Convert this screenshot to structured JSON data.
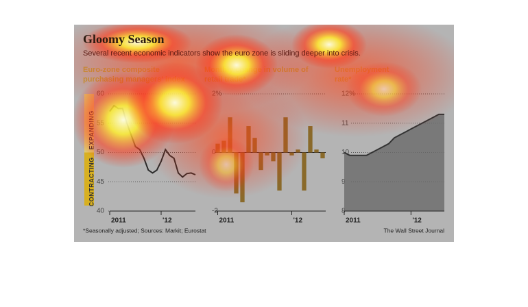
{
  "title": "Gloomy Season",
  "subtitle": "Several recent economic indicators show the euro zone is sliding deeper into crisis.",
  "note": "*Seasonally adjusted; Sources: Markit; Eurostat",
  "source": "The Wall Street Journal",
  "chart_data": [
    {
      "type": "line",
      "title": [
        "Euro-zone composite",
        "purchasing managers' index"
      ],
      "annotations": [
        "EXPANDING",
        "CONTRACTING"
      ],
      "categories": [
        "2011",
        null,
        null,
        null,
        null,
        null,
        null,
        null,
        null,
        null,
        null,
        null,
        "'12",
        null,
        null,
        null,
        null,
        null,
        null,
        null,
        null
      ],
      "values": [
        57,
        58,
        57.5,
        57.5,
        55,
        53,
        51,
        50.5,
        49,
        47,
        46.5,
        47,
        48.5,
        50.5,
        49.5,
        49,
        46.5,
        45.8,
        46.4,
        46.5,
        46.2
      ],
      "color": "#2a2a2a",
      "ylim": [
        40,
        60
      ],
      "yticks": [
        40,
        45,
        50,
        55,
        60
      ],
      "grid": true
    },
    {
      "type": "bar",
      "title": [
        "Monthly change in volume of",
        "retail trade*"
      ],
      "categories": [
        "2011",
        null,
        null,
        null,
        null,
        null,
        null,
        null,
        null,
        null,
        null,
        null,
        "'12",
        null,
        null,
        null,
        null,
        null
      ],
      "values": [
        0.3,
        0.4,
        1.2,
        -1.4,
        -1.7,
        0.9,
        0.5,
        -0.6,
        -0.1,
        -0.3,
        -1.3,
        1.2,
        -0.1,
        0.1,
        -1.3,
        0.9,
        0.1,
        -0.2
      ],
      "color": "#8a6a2a",
      "ylim": [
        -2,
        2
      ],
      "yticks": [
        -2,
        0,
        {
          "value": 2,
          "label": "2%"
        }
      ],
      "grid": true
    },
    {
      "type": "area",
      "title": [
        "Unemployment",
        "rate*"
      ],
      "categories": [
        "2011",
        null,
        null,
        null,
        null,
        null,
        null,
        null,
        null,
        null,
        null,
        null,
        "'12",
        null,
        null,
        null,
        null,
        null,
        null
      ],
      "values": [
        10.0,
        9.9,
        9.9,
        9.9,
        9.9,
        10.0,
        10.1,
        10.2,
        10.3,
        10.5,
        10.6,
        10.7,
        10.8,
        10.9,
        11.0,
        11.1,
        11.2,
        11.3,
        11.3
      ],
      "color": "#6a6a6a",
      "ylim": [
        8,
        12
      ],
      "yticks": [
        8,
        9,
        10,
        11,
        {
          "value": 12,
          "label": "12%"
        }
      ],
      "grid": true
    }
  ]
}
